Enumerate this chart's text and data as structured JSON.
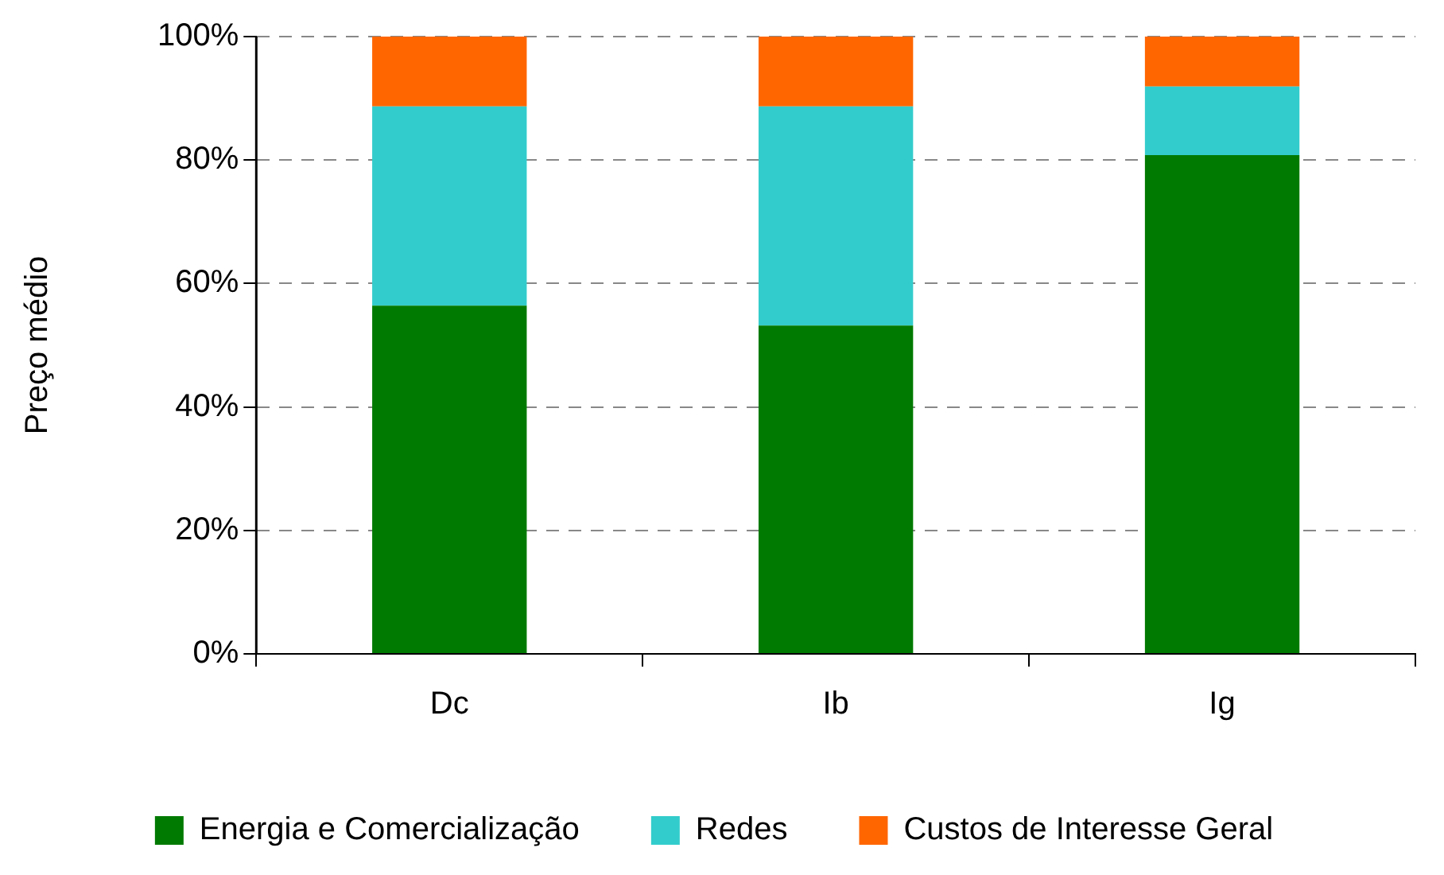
{
  "chart_data": {
    "type": "bar",
    "stacked": true,
    "ylabel": "Preço médio",
    "categories": [
      "Dc",
      "Ib",
      "Ig"
    ],
    "series": [
      {
        "name": "Energia e Comercialização",
        "color": "#007a00",
        "values": [
          56.4,
          53.2,
          80.8
        ]
      },
      {
        "name": "Redes",
        "color": "#33cccc",
        "values": [
          32.3,
          35.5,
          11.1
        ]
      },
      {
        "name": "Custos de Interesse Geral",
        "color": "#ff6600",
        "values": [
          11.3,
          11.3,
          8.1
        ]
      }
    ],
    "ylim": [
      0,
      100
    ],
    "yticks": [
      {
        "value": 0,
        "label": "0%"
      },
      {
        "value": 20,
        "label": "20%"
      },
      {
        "value": 40,
        "label": "40%"
      },
      {
        "value": 60,
        "label": "60%"
      },
      {
        "value": 80,
        "label": "80%"
      },
      {
        "value": 100,
        "label": "100%"
      }
    ],
    "grid": "y",
    "legend": "bottom"
  }
}
